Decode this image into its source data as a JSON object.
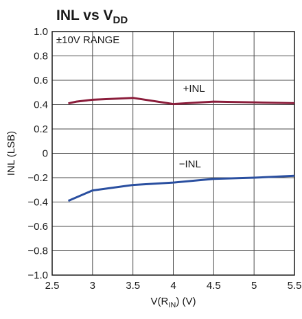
{
  "chart_data": {
    "type": "line",
    "title": {
      "main": "INL vs V",
      "sub": "DD"
    },
    "xlabel": {
      "pre": "V(R",
      "sub": "IN",
      "post": ") (V)"
    },
    "ylabel": "INL (LSB)",
    "xlim": [
      2.5,
      5.5
    ],
    "ylim": [
      -1.0,
      1.0
    ],
    "x_ticks": [
      2.5,
      3,
      3.5,
      4,
      4.5,
      5,
      5.5
    ],
    "x_tick_labels": [
      "2.5",
      "3",
      "3.5",
      "4",
      "4.5",
      "5",
      "5.5"
    ],
    "y_ticks": [
      -1.0,
      -0.8,
      -0.6,
      -0.4,
      -0.2,
      0,
      0.2,
      0.4,
      0.6,
      0.8,
      1.0
    ],
    "y_tick_labels": [
      "−1.0",
      "−0.8",
      "−0.6",
      "−0.4",
      "−0.2",
      "0",
      "0.2",
      "0.4",
      "0.6",
      "0.8",
      "1.0"
    ],
    "grid": true,
    "annotations": [
      {
        "text": "±10V RANGE",
        "x": 2.55,
        "y": 0.905
      },
      {
        "text": "+INL",
        "x": 4.12,
        "y": 0.505
      },
      {
        "text": "−INL",
        "x": 4.07,
        "y": -0.115
      }
    ],
    "series": [
      {
        "color": "#8b1d3b",
        "x": [
          2.7,
          2.8,
          3.0,
          3.5,
          4.0,
          4.5,
          5.0,
          5.5
        ],
        "y": [
          0.41,
          0.425,
          0.44,
          0.455,
          0.405,
          0.425,
          0.418,
          0.412
        ]
      },
      {
        "color": "#2a4fa0",
        "x": [
          2.7,
          3.0,
          3.5,
          4.0,
          4.5,
          5.0,
          5.5
        ],
        "y": [
          -0.39,
          -0.305,
          -0.26,
          -0.24,
          -0.21,
          -0.2,
          -0.185
        ]
      }
    ]
  }
}
